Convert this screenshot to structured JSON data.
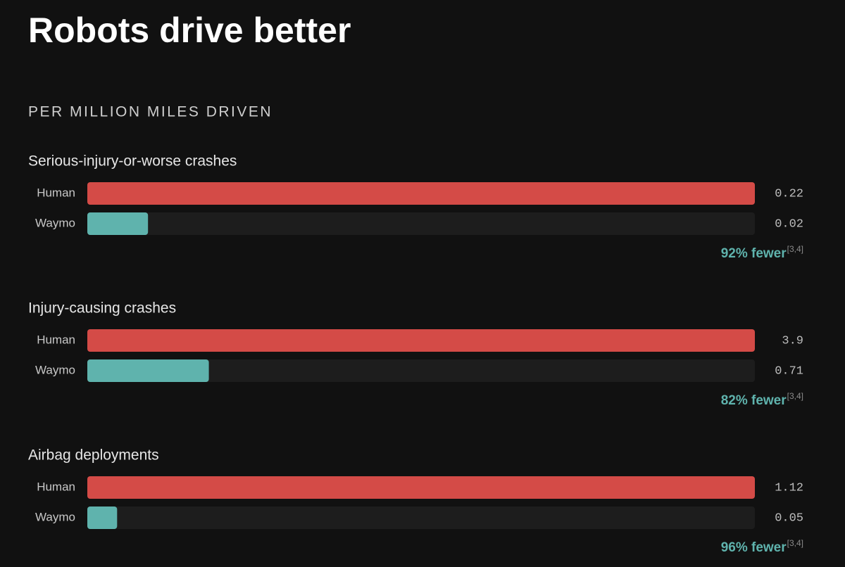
{
  "title": "Robots drive better",
  "subtitle": "PER MILLION MILES DRIVEN",
  "chart_data": [
    {
      "type": "bar",
      "orientation": "horizontal",
      "title": "Serious-injury-or-worse crashes",
      "categories": [
        "Human",
        "Waymo"
      ],
      "values": [
        0.22,
        0.02
      ],
      "colors": [
        "#d44b47",
        "#5fb3ad"
      ],
      "xlim": [
        0,
        0.22
      ],
      "annotation": {
        "text": "92% fewer",
        "ref": "[3,4]"
      }
    },
    {
      "type": "bar",
      "orientation": "horizontal",
      "title": "Injury-causing crashes",
      "categories": [
        "Human",
        "Waymo"
      ],
      "values": [
        3.9,
        0.71
      ],
      "colors": [
        "#d44b47",
        "#5fb3ad"
      ],
      "xlim": [
        0,
        3.9
      ],
      "annotation": {
        "text": "82% fewer",
        "ref": "[3,4]"
      }
    },
    {
      "type": "bar",
      "orientation": "horizontal",
      "title": "Airbag deployments",
      "categories": [
        "Human",
        "Waymo"
      ],
      "values": [
        1.12,
        0.05
      ],
      "colors": [
        "#d44b47",
        "#5fb3ad"
      ],
      "xlim": [
        0,
        1.12
      ],
      "annotation": {
        "text": "96% fewer",
        "ref": "[3,4]"
      }
    }
  ]
}
